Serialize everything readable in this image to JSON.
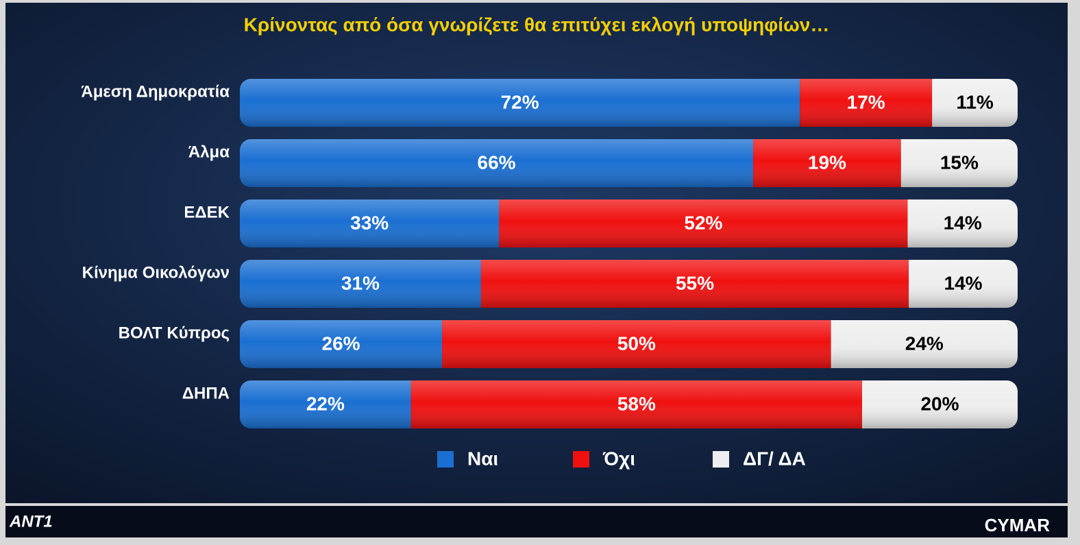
{
  "chart_data": {
    "type": "stacked_bar_horizontal",
    "title": "Κρίνοντας από όσα γνωρίζετε θα επιτύχει εκλογή υποψηφίων…",
    "categories": [
      "Άμεση Δημοκρατία",
      "Άλμα",
      "ΕΔΕΚ",
      "Κίνημα Οικολόγων",
      "ΒΟΛΤ Κύπρος",
      "ΔΗΠΑ"
    ],
    "series": [
      {
        "name": "Ναι",
        "color": "#1a6fd2",
        "text_color": "#ffffff",
        "values": [
          72,
          66,
          33,
          31,
          26,
          22
        ],
        "value_labels": [
          "72%",
          "66%",
          "33%",
          "31%",
          "26%",
          "22%"
        ]
      },
      {
        "name": "Όχι",
        "color": "#f01010",
        "text_color": "#ffffff",
        "values": [
          17,
          19,
          52,
          55,
          50,
          58
        ],
        "value_labels": [
          "17%",
          "19%",
          "52%",
          "55%",
          "50%",
          "58%"
        ]
      },
      {
        "name": "ΔΓ/ ΔΑ",
        "color": "#eeeeee",
        "text_color": "#000000",
        "values": [
          11,
          15,
          14,
          14,
          24,
          20
        ],
        "value_labels": [
          "11%",
          "15%",
          "14%",
          "14%",
          "24%",
          "20%"
        ]
      }
    ],
    "legend": "bottom"
  },
  "branding": {
    "left": "ANT1",
    "right": "CYMAR"
  }
}
